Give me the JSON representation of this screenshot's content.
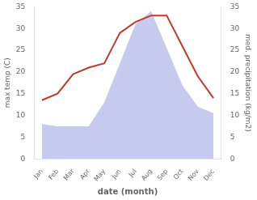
{
  "chart_data": {
    "type": "line",
    "categories": [
      "Jan",
      "Feb",
      "Mar",
      "Apr",
      "May",
      "Jun",
      "Jul",
      "Aug",
      "Sep",
      "Oct",
      "Nov",
      "Dec"
    ],
    "series": [
      {
        "type": "area",
        "color": "#c5caee",
        "axis": "y2",
        "values": [
          8.0,
          7.5,
          7.5,
          7.5,
          13.0,
          22.0,
          31.0,
          34.0,
          25.5,
          17.0,
          12.0,
          10.5
        ]
      },
      {
        "type": "line",
        "color": "#c0392b",
        "values": [
          13.5,
          15.0,
          19.5,
          21.0,
          22.0,
          29.0,
          31.5,
          33.0,
          33.0,
          26.0,
          19.0,
          14.0
        ]
      }
    ],
    "xlabel": "date (month)",
    "ylabel": "max temp (C)",
    "y2label": "med. precipitation (kg/m2)",
    "ylim": [
      0,
      35
    ],
    "yticks": [
      0,
      5,
      10,
      15,
      20,
      25,
      30,
      35
    ],
    "y2lim": [
      0,
      35
    ],
    "y2ticks": [
      0,
      5,
      10,
      15,
      20,
      25,
      30,
      35
    ],
    "grid": false
  }
}
